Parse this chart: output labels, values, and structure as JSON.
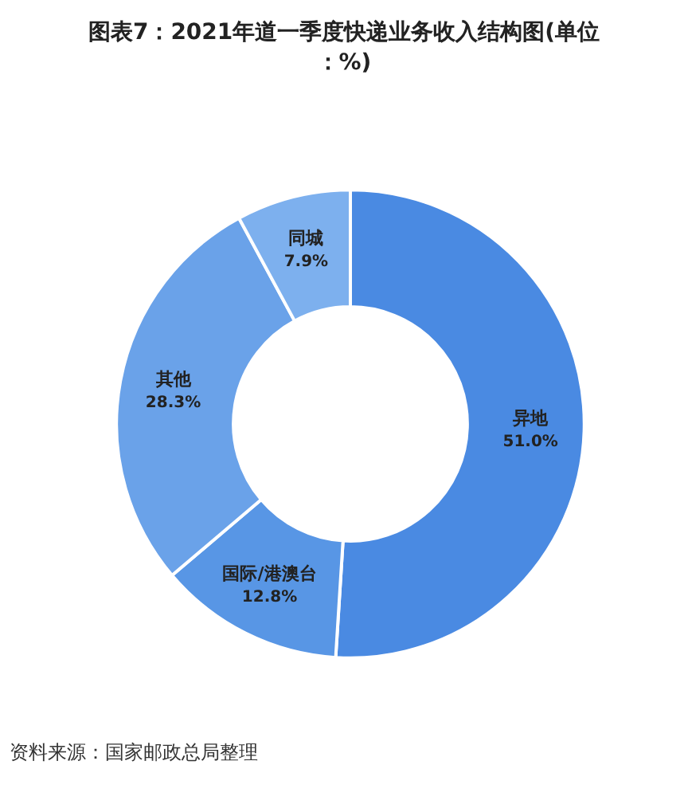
{
  "chart_data": {
    "type": "donut",
    "title": "图表7：2021年道一季度快递业务收入结构图(单位：%)",
    "categories": [
      "异地",
      "国际/港澳台",
      "其他",
      "同城"
    ],
    "values": [
      51.0,
      12.8,
      28.3,
      7.9
    ],
    "colors": [
      "#4a8ae2",
      "#5896e5",
      "#6aa2e9",
      "#7db0ee"
    ],
    "value_labels": [
      "51.0%",
      "12.8%",
      "28.3%",
      "7.9%"
    ],
    "annotations": [
      "资料来源：国家邮政总局整理"
    ]
  }
}
